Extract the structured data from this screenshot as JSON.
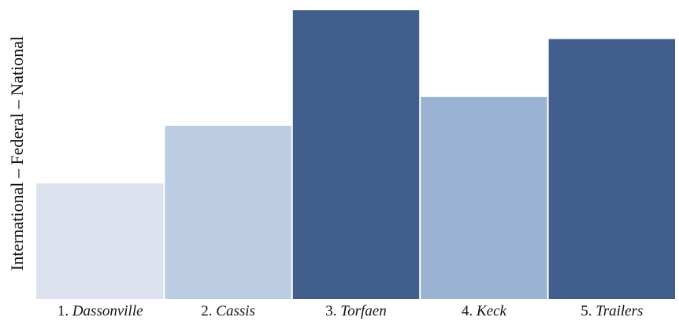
{
  "chart_data": {
    "type": "bar",
    "ylabel": "International – Federal – National",
    "xlabel": "",
    "title": "",
    "categories": [
      {
        "num": "1.",
        "name": "Dassonville"
      },
      {
        "num": "2.",
        "name": "Cassis"
      },
      {
        "num": "3.",
        "name": "Torfaen"
      },
      {
        "num": "4.",
        "name": "Keck"
      },
      {
        "num": "5.",
        "name": "Trailers"
      }
    ],
    "values": [
      1.0,
      1.5,
      2.5,
      1.75,
      2.25
    ],
    "ylim": [
      0,
      2.5
    ],
    "colors": [
      "#dce3ef",
      "#bccce3",
      "#415e8c",
      "#9bb3d3",
      "#415e8c"
    ],
    "grid": false,
    "legend": "none"
  }
}
